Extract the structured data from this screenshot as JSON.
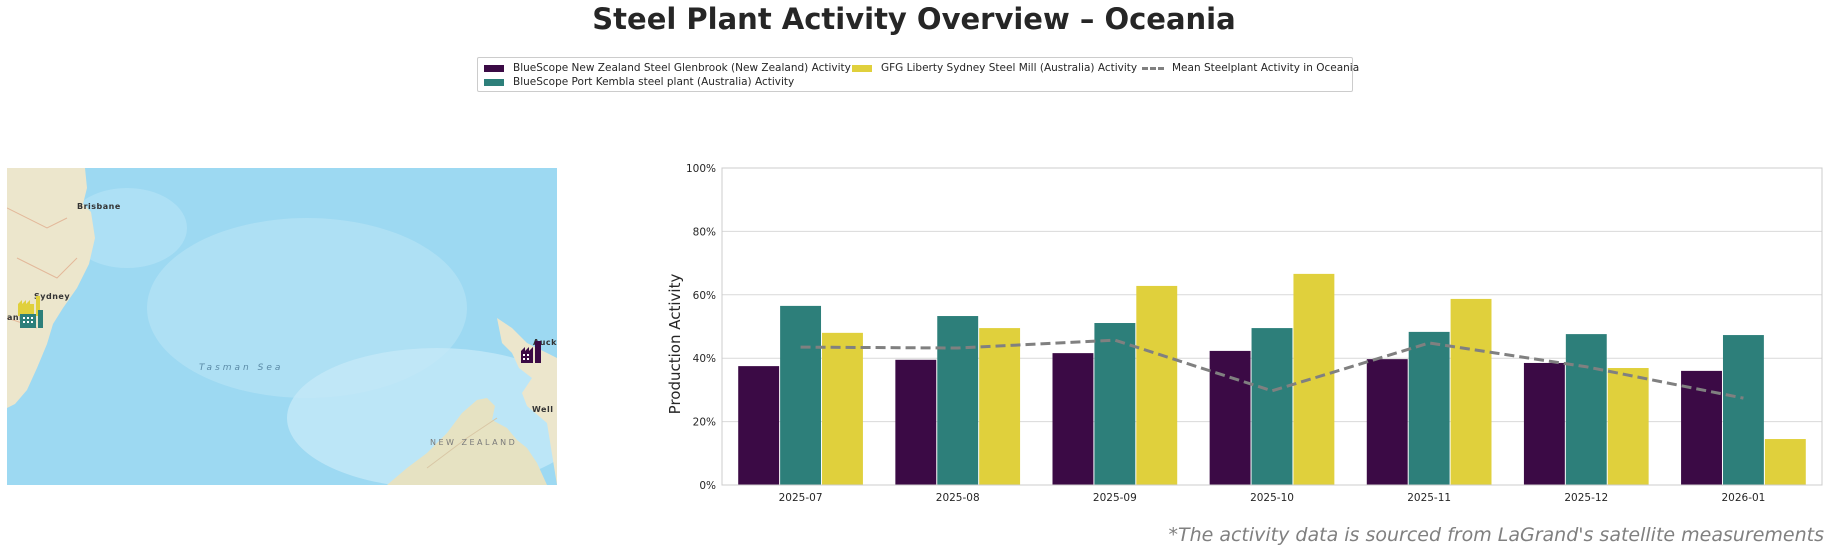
{
  "title": "Steel Plant Activity Overview – Oceania",
  "footnote": "*The activity data is sourced from LaGrand's satellite measurements",
  "colors": {
    "glenbrook": "#3b0a45",
    "port_kembla": "#2d7f7a",
    "liberty_sydney": "#e0d03c",
    "mean": "#808080",
    "grid": "#d9d9d9"
  },
  "legend": {
    "items": [
      {
        "label": "BlueScope New Zealand Steel Glenbrook (New Zealand) Activity",
        "color": "#3b0a45",
        "kind": "bar"
      },
      {
        "label": "BlueScope Port Kembla steel plant (Australia) Activity",
        "color": "#2d7f7a",
        "kind": "bar"
      },
      {
        "label": "GFG Liberty Sydney Steel Mill (Australia) Activity",
        "color": "#e0d03c",
        "kind": "bar"
      },
      {
        "label": "Mean Steelplant Activity in Oceania",
        "color": "#808080",
        "kind": "dashed-line"
      }
    ]
  },
  "map": {
    "labels": {
      "brisbane": "Brisbane",
      "sydney": "Sydney",
      "canberra_partial": "anb",
      "auckland_partial": "Auck",
      "wellington_partial": "Well",
      "sea": "Tasman Sea",
      "country": "NEW ZEALAND"
    },
    "markers": [
      {
        "name": "GFG Liberty Sydney Steel Mill",
        "color": "#e0d03c",
        "icon": "factory-icon"
      },
      {
        "name": "BlueScope Port Kembla steel plant",
        "color": "#2d7f7a",
        "icon": "factory-icon"
      },
      {
        "name": "BlueScope New Zealand Steel Glenbrook",
        "color": "#3b0a45",
        "icon": "factory-icon"
      }
    ]
  },
  "chart_data": {
    "type": "bar",
    "title": "Steel Plant Activity Overview – Oceania",
    "xlabel": "",
    "ylabel": "Production Activity",
    "ylim": [
      0,
      100
    ],
    "yticks": [
      0,
      20,
      40,
      60,
      80,
      100
    ],
    "ytick_labels": [
      "0%",
      "20%",
      "40%",
      "60%",
      "80%",
      "100%"
    ],
    "grid": true,
    "legend_position": "top-center",
    "categories": [
      "2025-07",
      "2025-08",
      "2025-09",
      "2025-10",
      "2025-11",
      "2025-12",
      "2026-01"
    ],
    "series": [
      {
        "name": "BlueScope New Zealand Steel Glenbrook (New Zealand) Activity",
        "type": "bar",
        "color": "#3b0a45",
        "values": [
          37.5,
          39.5,
          41.6,
          42.3,
          39.7,
          38.5,
          36.0
        ]
      },
      {
        "name": "BlueScope Port Kembla steel plant (Australia) Activity",
        "type": "bar",
        "color": "#2d7f7a",
        "values": [
          56.5,
          53.3,
          51.1,
          49.5,
          48.3,
          47.6,
          47.3
        ]
      },
      {
        "name": "GFG Liberty Sydney Steel Mill (Australia) Activity",
        "type": "bar",
        "color": "#e0d03c",
        "values": [
          48.0,
          49.5,
          62.8,
          66.6,
          58.7,
          36.9,
          14.5
        ]
      },
      {
        "name": "Mean Steelplant Activity in Oceania",
        "type": "line",
        "style": "dashed",
        "color": "#808080",
        "values": [
          43.5,
          43.2,
          45.7,
          29.7,
          44.8,
          37.3,
          27.4
        ]
      }
    ]
  }
}
